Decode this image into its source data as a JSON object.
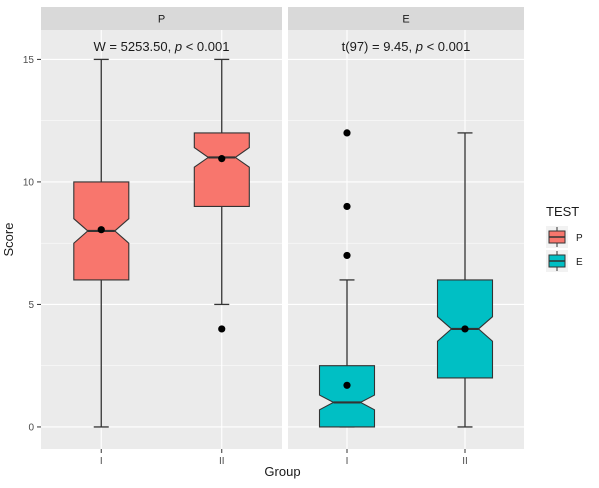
{
  "chart_data": {
    "type": "box",
    "notched": true,
    "facets": [
      {
        "strip": "P",
        "annotation": {
          "prefix": "W = 5253.50, ",
          "p": "p",
          "suffix": " < 0.001"
        },
        "fill": "#F8766D",
        "groups": [
          {
            "x": "I",
            "min": 0,
            "q1": 6,
            "median": 8,
            "q3": 10,
            "max": 15,
            "notch_low": 7.5,
            "notch_high": 8.5,
            "mean": 8.05,
            "outliers": []
          },
          {
            "x": "II",
            "min": 5,
            "q1": 9,
            "median": 11,
            "q3": 12,
            "max": 15,
            "notch_low": 10.6,
            "notch_high": 11.4,
            "mean": 10.95,
            "outliers": [
              4
            ]
          }
        ]
      },
      {
        "strip": "E",
        "annotation": {
          "prefix": "t(97) = 9.45, ",
          "p": "p",
          "suffix": " < 0.001"
        },
        "fill": "#00BFC4",
        "groups": [
          {
            "x": "I",
            "min": 0,
            "q1": 0,
            "median": 1,
            "q3": 2.5,
            "max": 6,
            "notch_low": 0.7,
            "notch_high": 1.3,
            "mean": 1.7,
            "outliers": [
              7,
              9,
              12
            ]
          },
          {
            "x": "II",
            "min": 0,
            "q1": 2,
            "median": 4,
            "q3": 6,
            "max": 12,
            "notch_low": 3.5,
            "notch_high": 4.5,
            "mean": 4.0,
            "outliers": []
          }
        ]
      }
    ],
    "xlabel": "Group",
    "ylabel": "Score",
    "ylim": [
      -0.9,
      16.2
    ],
    "yticks": [
      0,
      5,
      10,
      15
    ],
    "legend": {
      "title": "TEST",
      "position": "right",
      "items": [
        {
          "label": "P",
          "color": "#F8766D"
        },
        {
          "label": "E",
          "color": "#00BFC4"
        }
      ]
    },
    "colors": {
      "panel": "#EBEBEB",
      "strip": "#D9D9D9",
      "grid": "#FFFFFF",
      "line": "#333333"
    }
  }
}
